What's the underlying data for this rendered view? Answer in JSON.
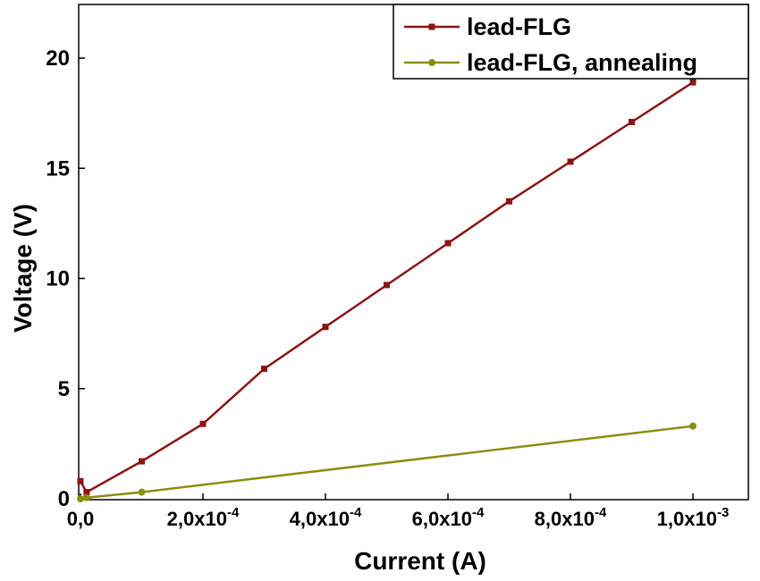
{
  "chart_data": {
    "type": "line",
    "xlabel": "Current (A)",
    "ylabel": "Voltage (V)",
    "xlim": [
      0,
      0.00106
    ],
    "ylim": [
      0,
      22
    ],
    "x_ticks": [
      {
        "value": 0,
        "mantissa": "0,0",
        "exponent": ""
      },
      {
        "value": 0.0002,
        "mantissa": "2,0x10",
        "exponent": "-4"
      },
      {
        "value": 0.0004,
        "mantissa": "4,0x10",
        "exponent": "-4"
      },
      {
        "value": 0.0006,
        "mantissa": "6,0x10",
        "exponent": "-4"
      },
      {
        "value": 0.0008,
        "mantissa": "8,0x10",
        "exponent": "-4"
      },
      {
        "value": 0.001,
        "mantissa": "1,0x10",
        "exponent": "-3"
      }
    ],
    "y_ticks": [
      {
        "value": 0,
        "label": "0"
      },
      {
        "value": 5,
        "label": "5"
      },
      {
        "value": 10,
        "label": "10"
      },
      {
        "value": 15,
        "label": "15"
      },
      {
        "value": 20,
        "label": "20"
      }
    ],
    "legend_position": "top-right",
    "series": [
      {
        "name": "lead-FLG",
        "color": "#8B1414",
        "marker": "square",
        "points": [
          {
            "x": 0.0,
            "y": 0.8
          },
          {
            "x": 1e-05,
            "y": 0.3
          },
          {
            "x": 0.0001,
            "y": 1.7
          },
          {
            "x": 0.0002,
            "y": 3.4
          },
          {
            "x": 0.0003,
            "y": 5.9
          },
          {
            "x": 0.0004,
            "y": 7.8
          },
          {
            "x": 0.0005,
            "y": 9.7
          },
          {
            "x": 0.0006,
            "y": 11.6
          },
          {
            "x": 0.0007,
            "y": 13.5
          },
          {
            "x": 0.0008,
            "y": 15.3
          },
          {
            "x": 0.0009,
            "y": 17.1
          },
          {
            "x": 0.001,
            "y": 18.9
          }
        ]
      },
      {
        "name": "lead-FLG, annealing",
        "color": "#8A8F12",
        "marker": "circle",
        "points": [
          {
            "x": 0.0,
            "y": 0.0
          },
          {
            "x": 1e-05,
            "y": 0.05
          },
          {
            "x": 0.0001,
            "y": 0.3
          },
          {
            "x": 0.001,
            "y": 3.3
          }
        ]
      }
    ]
  }
}
